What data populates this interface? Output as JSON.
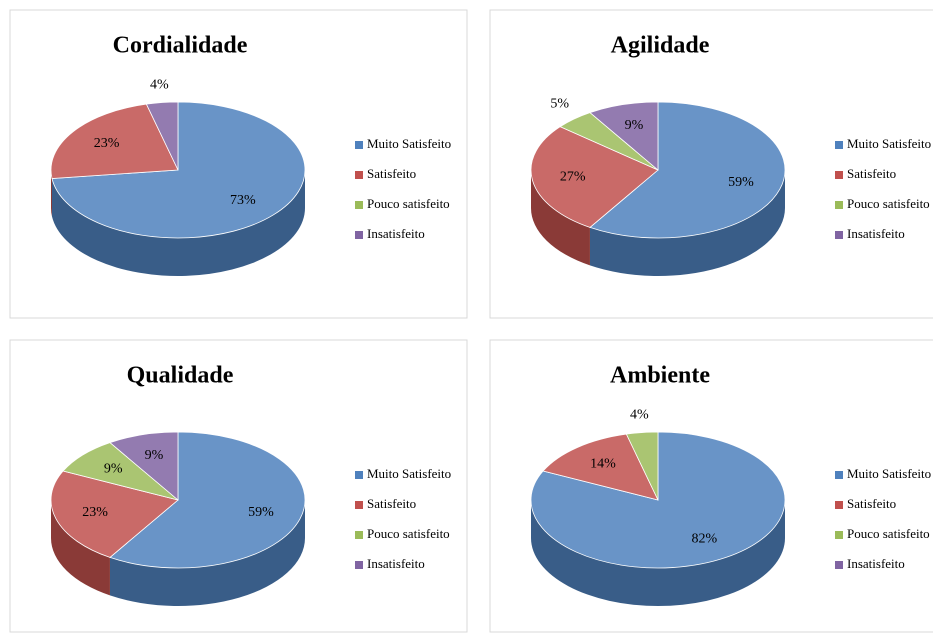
{
  "chart_data": [
    {
      "type": "pie3d",
      "title": "Cordialidade",
      "categories": [
        "Muito Satisfeito",
        "Satisfeito",
        "Pouco satisfeito",
        "Insatisfeito"
      ],
      "colors": [
        "#4f81bd",
        "#c0504d",
        "#9bbb59",
        "#8064a2"
      ],
      "values": [
        73,
        23,
        0,
        4
      ],
      "value_labels": [
        "73%",
        "23%",
        null,
        "4%"
      ]
    },
    {
      "type": "pie3d",
      "title": "Agilidade",
      "categories": [
        "Muito Satisfeito",
        "Satisfeito",
        "Pouco satisfeito",
        "Insatisfeito"
      ],
      "colors": [
        "#4f81bd",
        "#c0504d",
        "#9bbb59",
        "#8064a2"
      ],
      "values": [
        59,
        27,
        5,
        9
      ],
      "value_labels": [
        "59%",
        "27%",
        "5%",
        "9%"
      ]
    },
    {
      "type": "pie3d",
      "title": "Qualidade",
      "categories": [
        "Muito Satisfeito",
        "Satisfeito",
        "Pouco satisfeito",
        "Insatisfeito"
      ],
      "colors": [
        "#4f81bd",
        "#c0504d",
        "#9bbb59",
        "#8064a2"
      ],
      "values": [
        59,
        23,
        9,
        9
      ],
      "value_labels": [
        "59%",
        "23%",
        "9%",
        "9%"
      ]
    },
    {
      "type": "pie3d",
      "title": "Ambiente",
      "categories": [
        "Muito Satisfeito",
        "Satisfeito",
        "Pouco satisfeito",
        "Insatisfeito"
      ],
      "colors": [
        "#4f81bd",
        "#c0504d",
        "#9bbb59",
        "#8064a2"
      ],
      "values": [
        82,
        14,
        4,
        0
      ],
      "value_labels": [
        "82%",
        "14%",
        "4%",
        null
      ]
    }
  ]
}
